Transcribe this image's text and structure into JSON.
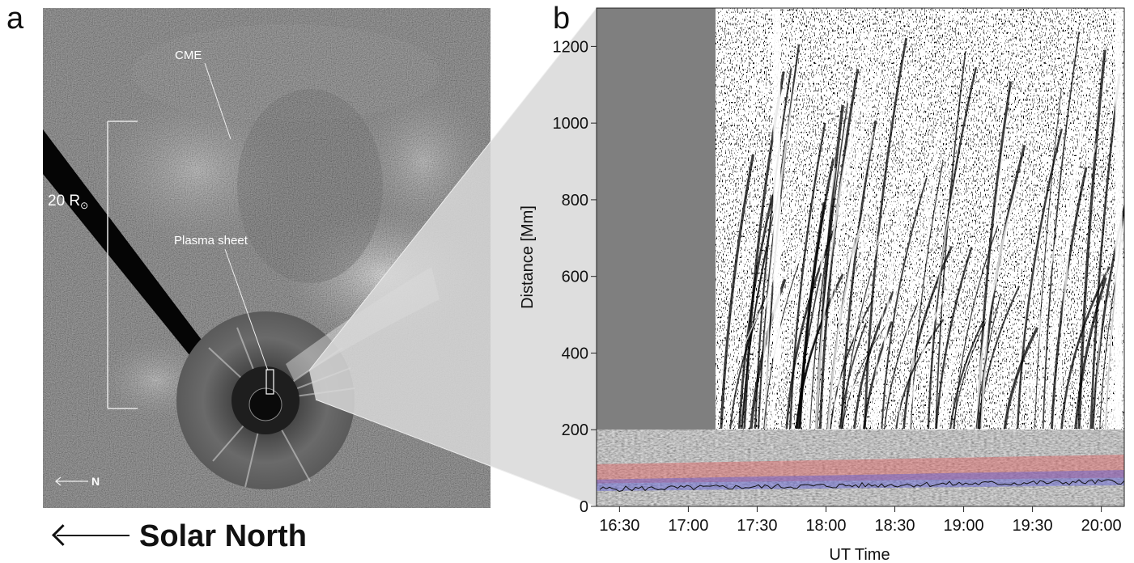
{
  "panel_a": {
    "label": "a",
    "annotations": {
      "cme": "CME",
      "plasma_sheet": "Plasma sheet",
      "scale": "20 R",
      "scale_symbol": "⊙",
      "north_marker": "N"
    }
  },
  "panel_b": {
    "label": "b"
  },
  "caption": {
    "solar_north": "Solar North"
  },
  "chart_data": {
    "type": "heatmap",
    "xlabel": "UT Time",
    "ylabel": "Distance [Mm]",
    "x_ticks": [
      "16:30",
      "17:00",
      "17:30",
      "18:00",
      "18:30",
      "19:00",
      "19:30",
      "20:00"
    ],
    "y_ticks": [
      0,
      200,
      400,
      600,
      800,
      1000,
      1200
    ],
    "ylim": [
      0,
      1300
    ],
    "xlim": [
      "16:20",
      "20:10"
    ],
    "no_data_until": "17:12",
    "lower_band_max_distance": 200,
    "bands": [
      {
        "color": "#e06060",
        "approx_distance_range": [
          70,
          130
        ]
      },
      {
        "color": "#5a5ad8",
        "approx_distance_range": [
          50,
          90
        ]
      }
    ]
  }
}
